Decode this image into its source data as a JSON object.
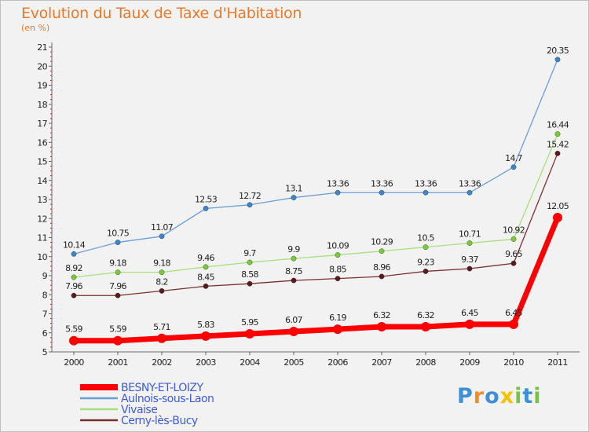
{
  "chart_data": {
    "type": "line",
    "title": "Evolution du Taux de Taxe d'Habitation",
    "subtitle": "(en %)",
    "x": [
      "2000",
      "2001",
      "2002",
      "2003",
      "2004",
      "2005",
      "2006",
      "2007",
      "2008",
      "2009",
      "2010",
      "2011"
    ],
    "ylim": [
      5,
      21
    ],
    "yticks": [
      5,
      6,
      7,
      8,
      9,
      10,
      11,
      12,
      13,
      14,
      15,
      16,
      17,
      18,
      19,
      20,
      21
    ],
    "grid": false,
    "legend_position": "bottom-left",
    "series": [
      {
        "name": "BESNY-ET-LOIZY",
        "color": "#ff0000",
        "marker": "#ff0000",
        "emphasis": true,
        "values": [
          5.59,
          5.59,
          5.71,
          5.83,
          5.95,
          6.07,
          6.19,
          6.32,
          6.32,
          6.45,
          6.45,
          12.05
        ],
        "labels": [
          "5.59",
          "5.59",
          "5.71",
          "5.83",
          "5.95",
          "6.07",
          "6.19",
          "6.32",
          "6.32",
          "6.45",
          "6.45",
          "12.05"
        ]
      },
      {
        "name": "Aulnois-sous-Laon",
        "color": "#6a9ed6",
        "marker": "#3a86cc",
        "emphasis": false,
        "values": [
          10.14,
          10.75,
          11.07,
          12.53,
          12.72,
          13.1,
          13.36,
          13.36,
          13.36,
          13.36,
          14.7,
          20.35
        ],
        "labels": [
          "10.14",
          "10.75",
          "11.07",
          "12.53",
          "12.72",
          "13.1",
          "13.36",
          "13.36",
          "13.36",
          "13.36",
          "14.7",
          "20.35"
        ]
      },
      {
        "name": "Vivaise",
        "color": "#a6e07a",
        "marker": "#77cc33",
        "emphasis": false,
        "values": [
          8.92,
          9.18,
          9.18,
          9.46,
          9.7,
          9.9,
          10.09,
          10.29,
          10.5,
          10.71,
          10.92,
          16.44
        ],
        "labels": [
          "8.92",
          "9.18",
          "9.18",
          "9.46",
          "9.7",
          "9.9",
          "10.09",
          "10.29",
          "10.5",
          "10.71",
          "10.92",
          "16.44"
        ]
      },
      {
        "name": "Cerny-lès-Bucy",
        "color": "#7a2f2f",
        "marker": "#5a1a1a",
        "emphasis": false,
        "values": [
          7.96,
          7.96,
          8.2,
          8.45,
          8.58,
          8.75,
          8.85,
          8.96,
          9.23,
          9.37,
          9.65,
          15.42
        ],
        "labels": [
          "7.96",
          "7.96",
          "8.2",
          "8.45",
          "8.58",
          "8.75",
          "8.85",
          "8.96",
          "9.23",
          "9.37",
          "9.65",
          "15.42"
        ]
      }
    ]
  },
  "logo": {
    "letters": [
      "P",
      "r",
      "o",
      "x",
      "i",
      "t",
      "i"
    ],
    "colors": [
      "#3d8fd6",
      "#f28c28",
      "#3d8fd6",
      "#f2c200",
      "#7ac143",
      "#3d8fd6",
      "#7ac143"
    ]
  }
}
